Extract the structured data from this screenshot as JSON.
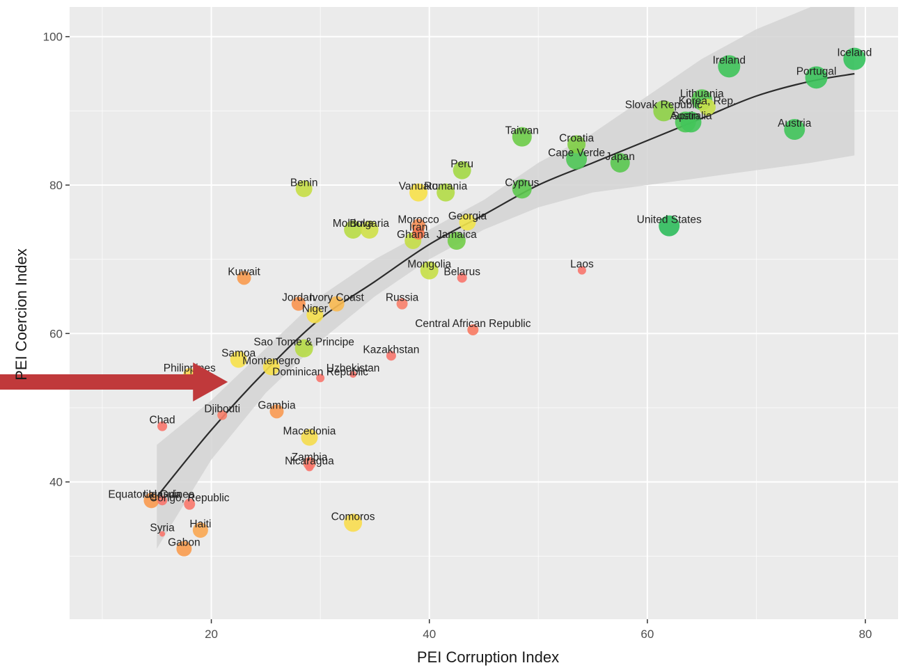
{
  "chart_data": {
    "type": "scatter",
    "title": "",
    "xlabel": "PEI Corruption Index",
    "ylabel": "PEI Coercion Index",
    "xlim": [
      7,
      83
    ],
    "ylim": [
      21.5,
      104
    ],
    "x_ticks": [
      20,
      40,
      60,
      80
    ],
    "y_ticks": [
      40,
      60,
      80,
      100
    ],
    "grid": true,
    "legend": "none",
    "colors": {
      "panel": "#ebebeb",
      "grid": "#ffffff",
      "trend": "#2b2b2b",
      "band": "#d3d3d3",
      "arrow": "#c0393b",
      "low": "#f8766d",
      "high": "#2ebd5a"
    },
    "trend": {
      "type": "loess",
      "x": [
        15,
        20,
        25,
        30,
        35,
        40,
        45,
        50,
        55,
        60,
        65,
        70,
        75,
        79
      ],
      "y": [
        38,
        47,
        55,
        62,
        67,
        72,
        76,
        80,
        83,
        86,
        89,
        92,
        94,
        95
      ],
      "lower": [
        31,
        43,
        52,
        59,
        65,
        70,
        74,
        77,
        79,
        80,
        81,
        82,
        83,
        84
      ],
      "upper": [
        45,
        51,
        58,
        65,
        70,
        74,
        78,
        83,
        87,
        92,
        97,
        101,
        104,
        104
      ]
    },
    "annotation": {
      "type": "arrow",
      "points_to": "Philippines"
    },
    "points": [
      {
        "label": "Iceland",
        "x": 79,
        "y": 97,
        "size": 16,
        "color": "#35c25c"
      },
      {
        "label": "Ireland",
        "x": 67.5,
        "y": 96,
        "size": 16,
        "color": "#3fc45a"
      },
      {
        "label": "Portugal",
        "x": 75.5,
        "y": 94.5,
        "size": 16,
        "color": "#3bc35b"
      },
      {
        "label": "Lithuania",
        "x": 65,
        "y": 91.5,
        "size": 15,
        "color": "#56c950"
      },
      {
        "label": "Slovak Republic",
        "x": 61.5,
        "y": 90,
        "size": 15,
        "color": "#8ed246"
      },
      {
        "label": "Korea, Rep.",
        "x": 65.5,
        "y": 90.5,
        "size": 12,
        "color": "#c8e04a"
      },
      {
        "label": "Spain",
        "x": 63.5,
        "y": 88.5,
        "size": 15,
        "color": "#4bc757"
      },
      {
        "label": "Australia",
        "x": 64,
        "y": 88.5,
        "size": 15,
        "color": "#42c55a"
      },
      {
        "label": "Austria",
        "x": 73.5,
        "y": 87.5,
        "size": 15,
        "color": "#40c45a"
      },
      {
        "label": "Taiwan",
        "x": 48.5,
        "y": 86.5,
        "size": 14,
        "color": "#6dcc48"
      },
      {
        "label": "Croatia",
        "x": 53.5,
        "y": 85.5,
        "size": 13,
        "color": "#7ece44"
      },
      {
        "label": "Cape Verde",
        "x": 53.5,
        "y": 83.5,
        "size": 15,
        "color": "#4fc656"
      },
      {
        "label": "Japan",
        "x": 57.5,
        "y": 83,
        "size": 14,
        "color": "#5ac850"
      },
      {
        "label": "Peru",
        "x": 43,
        "y": 82,
        "size": 13,
        "color": "#a3d845"
      },
      {
        "label": "Benin",
        "x": 28.5,
        "y": 79.5,
        "size": 12,
        "color": "#c6de46"
      },
      {
        "label": "Vanuatu",
        "x": 39,
        "y": 79,
        "size": 13,
        "color": "#f7e14a"
      },
      {
        "label": "Romania",
        "x": 41.5,
        "y": 79,
        "size": 13,
        "color": "#b2db46"
      },
      {
        "label": "Cyprus",
        "x": 48.5,
        "y": 79.5,
        "size": 14,
        "color": "#5dc94f"
      },
      {
        "label": "Morocco",
        "x": 39,
        "y": 74.5,
        "size": 10,
        "color": "#f89055"
      },
      {
        "label": "Moldova",
        "x": 33,
        "y": 74,
        "size": 13,
        "color": "#b8dc46"
      },
      {
        "label": "Bulgaria",
        "x": 34.5,
        "y": 74,
        "size": 13,
        "color": "#cfe048"
      },
      {
        "label": "Iran",
        "x": 39,
        "y": 73.5,
        "size": 9,
        "color": "#f8784f"
      },
      {
        "label": "Georgia",
        "x": 43.5,
        "y": 75,
        "size": 12,
        "color": "#f1e44b"
      },
      {
        "label": "Ghana",
        "x": 38.5,
        "y": 72.5,
        "size": 12,
        "color": "#c5de47"
      },
      {
        "label": "Jamaica",
        "x": 42.5,
        "y": 72.5,
        "size": 13,
        "color": "#72cd48"
      },
      {
        "label": "United States",
        "x": 62,
        "y": 74.5,
        "size": 15,
        "color": "#2fbd5c"
      },
      {
        "label": "Laos",
        "x": 54,
        "y": 68.5,
        "size": 6,
        "color": "#f8766d"
      },
      {
        "label": "Kuwait",
        "x": 23,
        "y": 67.5,
        "size": 10,
        "color": "#f99b4f"
      },
      {
        "label": "Mongolia",
        "x": 40,
        "y": 68.5,
        "size": 13,
        "color": "#c6df47"
      },
      {
        "label": "Belarus",
        "x": 43,
        "y": 67.5,
        "size": 7,
        "color": "#f8766d"
      },
      {
        "label": "Jordan",
        "x": 28,
        "y": 64,
        "size": 10,
        "color": "#f8934f"
      },
      {
        "label": "Ivory Coast",
        "x": 31.5,
        "y": 64,
        "size": 11,
        "color": "#f9ba52"
      },
      {
        "label": "Russia",
        "x": 37.5,
        "y": 64,
        "size": 8,
        "color": "#f8806a"
      },
      {
        "label": "Niger",
        "x": 29.5,
        "y": 62.5,
        "size": 12,
        "color": "#f6e04c"
      },
      {
        "label": "Central African Republic",
        "x": 44,
        "y": 60.5,
        "size": 8,
        "color": "#f87a62"
      },
      {
        "label": "Sao Tome & Principe",
        "x": 28.5,
        "y": 58,
        "size": 13,
        "color": "#b7dc47"
      },
      {
        "label": "Kazakhstan",
        "x": 36.5,
        "y": 57,
        "size": 7,
        "color": "#f8766d"
      },
      {
        "label": "Samoa",
        "x": 22.5,
        "y": 56.5,
        "size": 12,
        "color": "#f7e14a"
      },
      {
        "label": "Philippines",
        "x": 18,
        "y": 54.5,
        "size": 9,
        "color": "#f9d24d"
      },
      {
        "label": "Montenegro",
        "x": 25.5,
        "y": 55.5,
        "size": 12,
        "color": "#f6df4a"
      },
      {
        "label": "Uzbekistan",
        "x": 33,
        "y": 54.5,
        "size": 5,
        "color": "#f8766d"
      },
      {
        "label": "Dominican Republic",
        "x": 30,
        "y": 54,
        "size": 6,
        "color": "#f8766d"
      },
      {
        "label": "Gambia",
        "x": 26,
        "y": 49.5,
        "size": 10,
        "color": "#f99a52"
      },
      {
        "label": "Djibouti",
        "x": 21,
        "y": 49,
        "size": 7,
        "color": "#f8806a"
      },
      {
        "label": "Chad",
        "x": 15.5,
        "y": 47.5,
        "size": 7,
        "color": "#f8766d"
      },
      {
        "label": "Macedonia",
        "x": 29,
        "y": 46,
        "size": 12,
        "color": "#f5db4d"
      },
      {
        "label": "Zambia",
        "x": 29,
        "y": 42.5,
        "size": 9,
        "color": "#f8816a"
      },
      {
        "label": "Nicaragua",
        "x": 29,
        "y": 42,
        "size": 6,
        "color": "#f8766d"
      },
      {
        "label": "Equatorial Guinea",
        "x": 14.5,
        "y": 37.5,
        "size": 11,
        "color": "#f99a4f"
      },
      {
        "label": "Uganda",
        "x": 15.5,
        "y": 37.5,
        "size": 7,
        "color": "#f8766d"
      },
      {
        "label": "Congo, Republic",
        "x": 18,
        "y": 37,
        "size": 8,
        "color": "#f8786b"
      },
      {
        "label": "Syria",
        "x": 15.5,
        "y": 33,
        "size": 4,
        "color": "#f8766d"
      },
      {
        "label": "Haiti",
        "x": 19,
        "y": 33.5,
        "size": 11,
        "color": "#f9a752"
      },
      {
        "label": "Comoros",
        "x": 33,
        "y": 34.5,
        "size": 13,
        "color": "#f9dd4f"
      },
      {
        "label": "Gabon",
        "x": 17.5,
        "y": 31,
        "size": 11,
        "color": "#f99c4f"
      }
    ]
  }
}
